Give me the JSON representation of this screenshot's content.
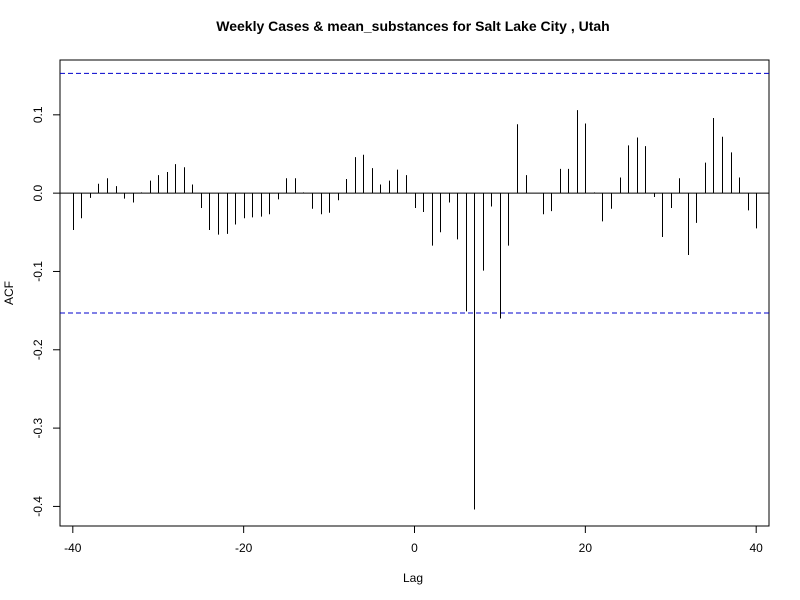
{
  "chart_data": {
    "type": "bar",
    "title": "Weekly Cases & mean_substances for Salt Lake City , Utah",
    "xlabel": "Lag",
    "ylabel": "ACF",
    "xlim": [
      -41.5,
      41.5
    ],
    "ylim": [
      -0.425,
      0.17
    ],
    "x_ticks": [
      -40,
      -20,
      0,
      20,
      40
    ],
    "x_tick_labels": [
      "-40",
      "-20",
      "0",
      "20",
      "40"
    ],
    "y_ticks": [
      -0.4,
      -0.3,
      -0.2,
      -0.1,
      0.0,
      0.1
    ],
    "y_tick_labels": [
      "-0.4",
      "-0.3",
      "-0.2",
      "-0.1",
      "0.0",
      "0.1"
    ],
    "confidence_band": 0.153,
    "confidence_color": "#0000cc",
    "bar_color": "#000000",
    "lags": [
      -40,
      -39,
      -38,
      -37,
      -36,
      -35,
      -34,
      -33,
      -32,
      -31,
      -30,
      -29,
      -28,
      -27,
      -26,
      -25,
      -24,
      -23,
      -22,
      -21,
      -20,
      -19,
      -18,
      -17,
      -16,
      -15,
      -14,
      -13,
      -12,
      -11,
      -10,
      -9,
      -8,
      -7,
      -6,
      -5,
      -4,
      -3,
      -2,
      -1,
      0,
      1,
      2,
      3,
      4,
      5,
      6,
      7,
      8,
      9,
      10,
      11,
      12,
      13,
      14,
      15,
      16,
      17,
      18,
      19,
      20,
      21,
      22,
      23,
      24,
      25,
      26,
      27,
      28,
      29,
      30,
      31,
      32,
      33,
      34,
      35,
      36,
      37,
      38,
      39,
      40
    ],
    "values": [
      -0.047,
      -0.032,
      -0.006,
      0.012,
      0.019,
      0.009,
      -0.007,
      -0.012,
      0.001,
      0.016,
      0.023,
      0.027,
      0.037,
      0.033,
      0.011,
      -0.019,
      -0.047,
      -0.053,
      -0.052,
      -0.04,
      -0.032,
      -0.031,
      -0.03,
      -0.027,
      -0.008,
      0.019,
      0.019,
      0.001,
      -0.02,
      -0.027,
      -0.025,
      -0.009,
      0.018,
      0.046,
      0.049,
      0.032,
      0.011,
      0.016,
      0.03,
      0.023,
      -0.019,
      -0.024,
      -0.067,
      -0.05,
      -0.012,
      -0.059,
      -0.151,
      -0.404,
      -0.099,
      -0.017,
      -0.16,
      -0.067,
      0.088,
      0.023,
      0.0,
      -0.027,
      -0.023,
      0.031,
      0.031,
      0.106,
      0.089,
      0.001,
      -0.036,
      -0.02,
      0.02,
      0.061,
      0.071,
      0.06,
      -0.005,
      -0.056,
      -0.019,
      0.019,
      -0.079,
      -0.038,
      0.039,
      0.096,
      0.072,
      0.052,
      0.02,
      -0.022,
      -0.045
    ]
  }
}
